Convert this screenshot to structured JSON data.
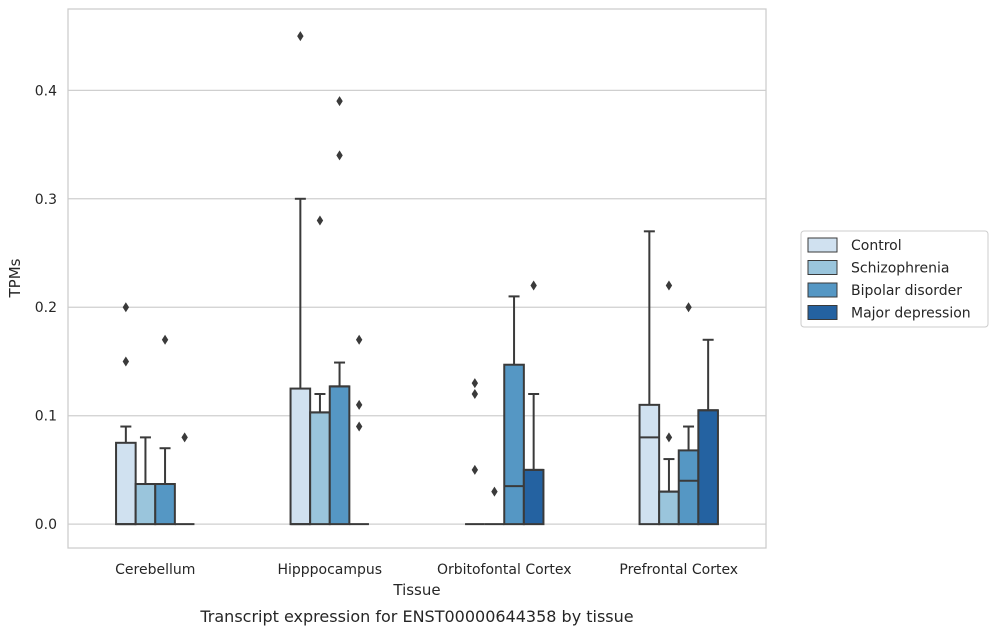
{
  "caption": "Transcript expression for ENST00000644358 by tissue",
  "colors": {
    "Control": "#d0e1f0",
    "Schizophrenia": "#9ac5dc",
    "Bipolar disorder": "#5597c4",
    "Major depression": "#2462a1",
    "edge": "#3a3a3a",
    "grid": "#cfcfcf",
    "frame": "#cccccc"
  },
  "chart_data": {
    "type": "box",
    "xlabel": "Tissue",
    "ylabel": "TPMs",
    "ylim": [
      -0.022,
      0.475
    ],
    "yticks": [
      0.0,
      0.1,
      0.2,
      0.3,
      0.4
    ],
    "ytick_labels": [
      "0.0",
      "0.1",
      "0.2",
      "0.3",
      "0.4"
    ],
    "grid": "horizontal",
    "legend": {
      "placement": "right",
      "entries": [
        "Control",
        "Schizophrenia",
        "Bipolar disorder",
        "Major depression"
      ]
    },
    "categories": [
      "Cerebellum",
      "Hipppocampus",
      "Orbitofontal Cortex",
      "Prefrontal Cortex"
    ],
    "series": [
      {
        "name": "Control",
        "boxes": [
          {
            "q1": 0.0,
            "median": 0.0,
            "q3": 0.075,
            "whisker_low": 0.0,
            "whisker_high": 0.09,
            "fliers": [
              0.15,
              0.2
            ]
          },
          {
            "q1": 0.0,
            "median": 0.0,
            "q3": 0.125,
            "whisker_low": 0.0,
            "whisker_high": 0.3,
            "fliers": [
              0.45
            ]
          },
          {
            "q1": 0.0,
            "median": 0.0,
            "q3": 0.0,
            "whisker_low": 0.0,
            "whisker_high": 0.0,
            "fliers": [
              0.05,
              0.12,
              0.13
            ]
          },
          {
            "q1": 0.0,
            "median": 0.08,
            "q3": 0.11,
            "whisker_low": 0.0,
            "whisker_high": 0.27,
            "fliers": []
          }
        ]
      },
      {
        "name": "Schizophrenia",
        "boxes": [
          {
            "q1": 0.0,
            "median": 0.037,
            "q3": 0.037,
            "whisker_low": 0.0,
            "whisker_high": 0.08,
            "fliers": []
          },
          {
            "q1": 0.0,
            "median": 0.103,
            "q3": 0.103,
            "whisker_low": 0.0,
            "whisker_high": 0.12,
            "fliers": [
              0.28
            ]
          },
          {
            "q1": 0.0,
            "median": 0.0,
            "q3": 0.0,
            "whisker_low": 0.0,
            "whisker_high": 0.0,
            "fliers": [
              0.03
            ]
          },
          {
            "q1": 0.0,
            "median": 0.03,
            "q3": 0.03,
            "whisker_low": 0.0,
            "whisker_high": 0.06,
            "fliers": [
              0.08,
              0.22
            ]
          }
        ]
      },
      {
        "name": "Bipolar disorder",
        "boxes": [
          {
            "q1": 0.0,
            "median": 0.037,
            "q3": 0.037,
            "whisker_low": 0.0,
            "whisker_high": 0.07,
            "fliers": [
              0.17
            ]
          },
          {
            "q1": 0.0,
            "median": 0.127,
            "q3": 0.127,
            "whisker_low": 0.0,
            "whisker_high": 0.149,
            "fliers": [
              0.34,
              0.39
            ]
          },
          {
            "q1": 0.0,
            "median": 0.035,
            "q3": 0.147,
            "whisker_low": 0.0,
            "whisker_high": 0.21,
            "fliers": []
          },
          {
            "q1": 0.0,
            "median": 0.04,
            "q3": 0.068,
            "whisker_low": 0.0,
            "whisker_high": 0.09,
            "fliers": [
              0.2
            ]
          }
        ]
      },
      {
        "name": "Major depression",
        "boxes": [
          {
            "q1": 0.0,
            "median": 0.0,
            "q3": 0.0,
            "whisker_low": 0.0,
            "whisker_high": 0.0,
            "fliers": [
              0.08
            ]
          },
          {
            "q1": 0.0,
            "median": 0.0,
            "q3": 0.0,
            "whisker_low": 0.0,
            "whisker_high": 0.0,
            "fliers": [
              0.09,
              0.11,
              0.17
            ]
          },
          {
            "q1": 0.0,
            "median": 0.05,
            "q3": 0.05,
            "whisker_low": 0.0,
            "whisker_high": 0.12,
            "fliers": [
              0.22
            ]
          },
          {
            "q1": 0.0,
            "median": 0.105,
            "q3": 0.105,
            "whisker_low": 0.0,
            "whisker_high": 0.17,
            "fliers": []
          }
        ]
      }
    ]
  }
}
